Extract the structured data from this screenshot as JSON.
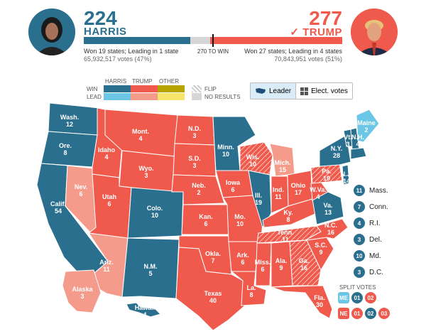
{
  "colors": {
    "dem_win": "#2a6f8e",
    "dem_lead": "#6cc7e6",
    "rep_win": "#ef5a4d",
    "rep_lead": "#f59b8c",
    "other_win": "#b8a400",
    "other_lead": "#f7e46a",
    "no_results": "#d6d6d6"
  },
  "header": {
    "harris": {
      "ev": "224",
      "name": "HARRIS",
      "line1": "Won 19 states; Leading in 1 state",
      "line2": "65,932,517 votes (47%)"
    },
    "trump": {
      "ev": "277",
      "name": "✓ TRUMP",
      "line1": "Won 27 states; Leading in 4 states",
      "line2": "70,843,951 votes (51%)"
    },
    "threshold": "270 TO WIN"
  },
  "legend": {
    "harris": "HARRIS",
    "trump": "TRUMP",
    "other": "OTHER",
    "win": "WIN",
    "lead": "LEAD",
    "flip": "FLIP",
    "no_results": "NO RESULTS"
  },
  "toggle": {
    "leader": "Leader",
    "elect": "Elect. votes"
  },
  "map_labels": [
    {
      "abbr": "Wash.",
      "ev": "12",
      "party": "dem_win"
    },
    {
      "abbr": "Ore.",
      "ev": "8",
      "party": "dem_win"
    },
    {
      "abbr": "Calif.",
      "ev": "54",
      "party": "dem_win"
    },
    {
      "abbr": "Nev.",
      "ev": "6",
      "party": "rep_lead"
    },
    {
      "abbr": "Idaho",
      "ev": "4",
      "party": "rep_win"
    },
    {
      "abbr": "Mont.",
      "ev": "4",
      "party": "rep_win"
    },
    {
      "abbr": "Wyo.",
      "ev": "3",
      "party": "rep_win"
    },
    {
      "abbr": "Utah",
      "ev": "6",
      "party": "rep_win"
    },
    {
      "abbr": "Ariz.",
      "ev": "11",
      "party": "rep_lead"
    },
    {
      "abbr": "Colo.",
      "ev": "10",
      "party": "dem_win"
    },
    {
      "abbr": "N.M.",
      "ev": "5",
      "party": "dem_win"
    },
    {
      "abbr": "N.D.",
      "ev": "3",
      "party": "rep_win"
    },
    {
      "abbr": "S.D.",
      "ev": "3",
      "party": "rep_win"
    },
    {
      "abbr": "Neb.",
      "ev": "2",
      "party": "rep_win"
    },
    {
      "abbr": "Kan.",
      "ev": "6",
      "party": "rep_win"
    },
    {
      "abbr": "Okla.",
      "ev": "7",
      "party": "rep_win"
    },
    {
      "abbr": "Texas",
      "ev": "40",
      "party": "rep_win"
    },
    {
      "abbr": "Minn.",
      "ev": "10",
      "party": "dem_win"
    },
    {
      "abbr": "Iowa",
      "ev": "6",
      "party": "rep_win"
    },
    {
      "abbr": "Mo.",
      "ev": "10",
      "party": "rep_win"
    },
    {
      "abbr": "Ark.",
      "ev": "6",
      "party": "rep_win"
    },
    {
      "abbr": "La.",
      "ev": "8",
      "party": "rep_win"
    },
    {
      "abbr": "Wis.",
      "ev": "10",
      "party": "rep_lead"
    },
    {
      "abbr": "Ill.",
      "ev": "19",
      "party": "dem_win"
    },
    {
      "abbr": "Mich.",
      "ev": "15",
      "party": "rep_lead"
    },
    {
      "abbr": "Ind.",
      "ev": "11",
      "party": "rep_win"
    },
    {
      "abbr": "Ohio",
      "ev": "17",
      "party": "rep_win"
    },
    {
      "abbr": "Ky.",
      "ev": "8",
      "party": "rep_win"
    },
    {
      "abbr": "Tenn.",
      "ev": "11",
      "party": "rep_win"
    },
    {
      "abbr": "Miss.",
      "ev": "6",
      "party": "rep_win"
    },
    {
      "abbr": "Ala.",
      "ev": "9",
      "party": "rep_win"
    },
    {
      "abbr": "Ga.",
      "ev": "16",
      "party": "rep_win"
    },
    {
      "abbr": "Fla.",
      "ev": "30",
      "party": "rep_win"
    },
    {
      "abbr": "S.C.",
      "ev": "9",
      "party": "rep_win"
    },
    {
      "abbr": "N.C.",
      "ev": "16",
      "party": "rep_win"
    },
    {
      "abbr": "Va.",
      "ev": "13",
      "party": "dem_win"
    },
    {
      "abbr": "W.Va.",
      "ev": "4",
      "party": "rep_win"
    },
    {
      "abbr": "Pa.",
      "ev": "19",
      "party": "rep_win"
    },
    {
      "abbr": "N.Y.",
      "ev": "28",
      "party": "dem_win"
    },
    {
      "abbr": "N.J.",
      "ev": "14",
      "party": "dem_win"
    },
    {
      "abbr": "Vt.",
      "ev": "3",
      "party": "dem_win"
    },
    {
      "abbr": "N.H.",
      "ev": "4",
      "party": "dem_win"
    },
    {
      "abbr": "Maine",
      "ev": "2",
      "party": "dem_lead"
    },
    {
      "abbr": "Alaska",
      "ev": "3",
      "party": "rep_lead"
    },
    {
      "abbr": "Hawaii",
      "ev": "4",
      "party": "dem_win"
    }
  ],
  "small_states": [
    {
      "ev": "11",
      "name": "Mass."
    },
    {
      "ev": "7",
      "name": "Conn."
    },
    {
      "ev": "4",
      "name": "R.I."
    },
    {
      "ev": "3",
      "name": "Del."
    },
    {
      "ev": "10",
      "name": "Md."
    },
    {
      "ev": "3",
      "name": "D.C."
    }
  ],
  "split": {
    "title": "SPLIT VOTES",
    "me": {
      "state": "ME",
      "districts": [
        "01",
        "02"
      ]
    },
    "ne": {
      "state": "NE",
      "districts": [
        "01",
        "02",
        "03"
      ]
    }
  }
}
